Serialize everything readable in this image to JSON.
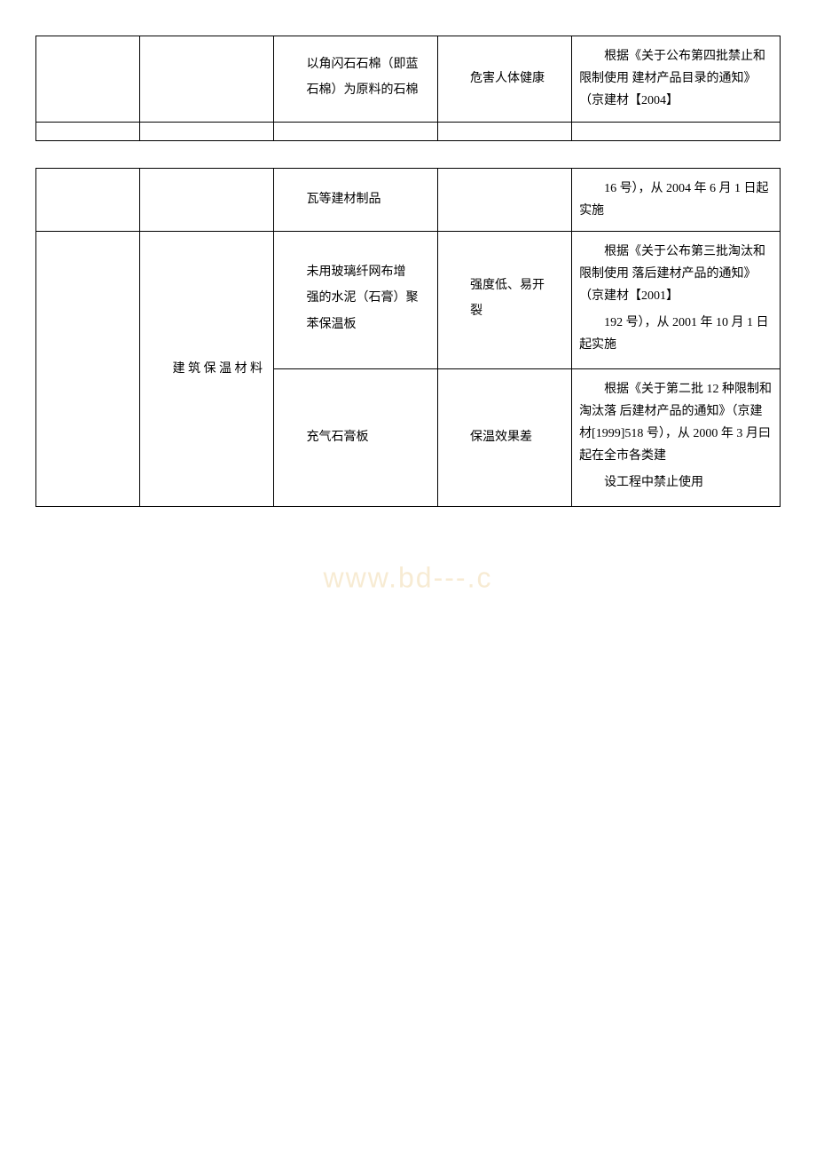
{
  "watermark": "www.bd---.c",
  "table1": {
    "row1": {
      "col3a": "以角闪石石棉（即蓝",
      "col3b": "石棉）为原料的石棉",
      "col4": "危害人体健康",
      "col5": "根据《关于公布第四批禁止和限制使用 建材产品目录的通知》（京建材【2004】"
    }
  },
  "table2": {
    "row1": {
      "col3": "瓦等建材制品",
      "col5": "16 号），从 2004 年 6 月 1 日起实施"
    },
    "row2": {
      "col2": "建 筑 保 温 材 料",
      "col3a": "未用玻璃纤网布增",
      "col3b": "强的水泥（石膏）聚",
      "col3c": "苯保温板",
      "col4a": "强度低、易开",
      "col4b": "裂",
      "col5a": "根据《关于公布第三批淘汰和限制使用 落后建材产品的通知》（京建材【2001】",
      "col5b": "192 号），从 2001 年 10 月 1 日起实施"
    },
    "row3": {
      "col3": "充气石膏板",
      "col4": "保温效果差",
      "col5a": "根据《关于第二批 12 种限制和淘汰落 后建材产品的通知》（京建材[1999]518 号），从 2000 年 3 月曰起在全市各类建",
      "col5b": "设工程中禁止使用"
    }
  }
}
